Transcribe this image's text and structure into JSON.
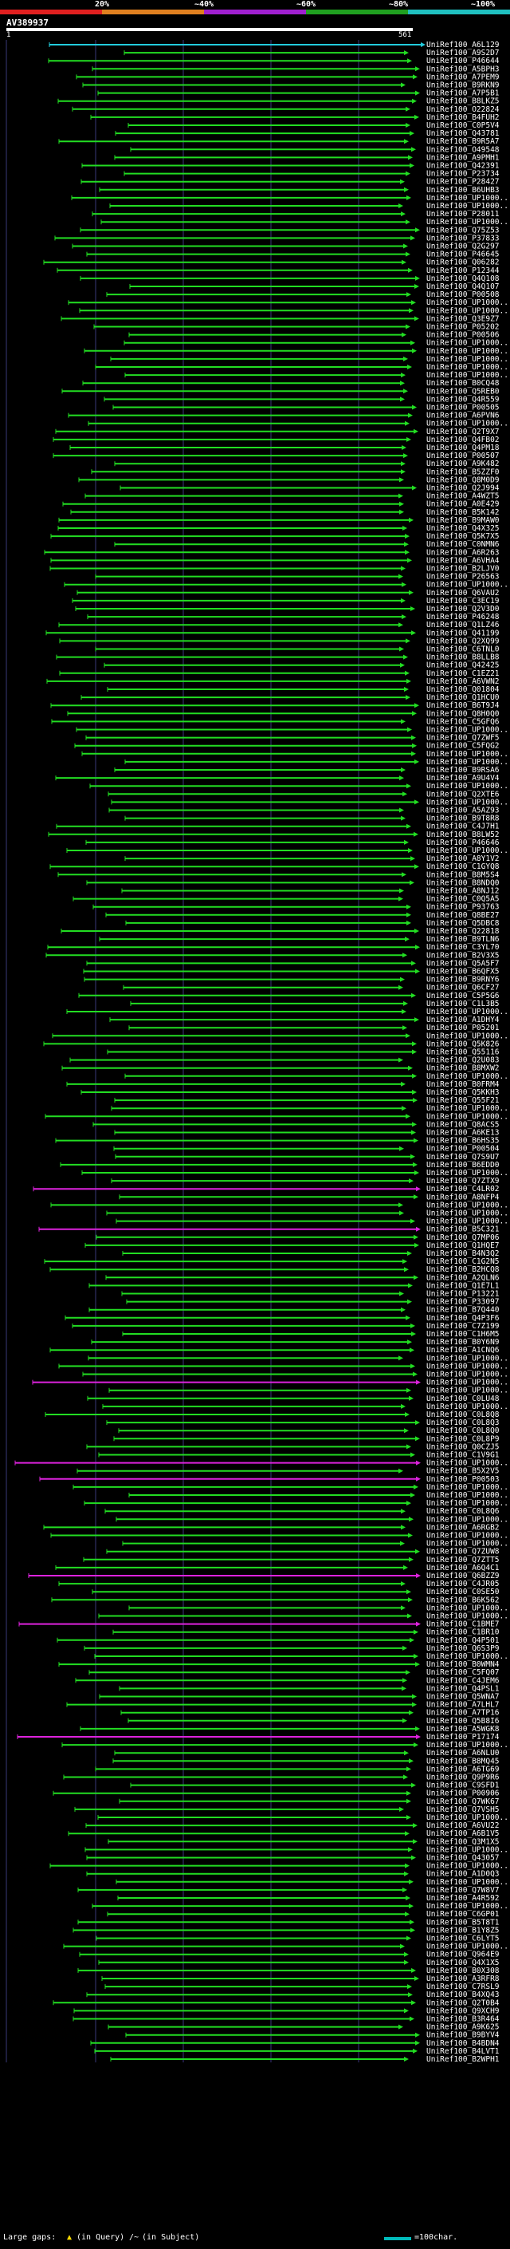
{
  "scale": {
    "labels": [
      "20%",
      "~40%",
      "~60%",
      "~80%",
      "~100%"
    ],
    "colors": [
      "#e02020",
      "#e08020",
      "#a020d0",
      "#20a020",
      "#20c0c0"
    ]
  },
  "query": {
    "name": "AV389937",
    "start": "1",
    "end": "561"
  },
  "colors": {
    "bg": "#000000",
    "best": "#22ccdd",
    "green": "#22dd22",
    "magenta": "#dd22dd",
    "grid": "#3a3a7a"
  },
  "hits": [
    "UniRef100_A6L129",
    "UniRef100_A9S2D7",
    "UniRef100_P46644",
    "UniRef100_A5BPH3",
    "UniRef100_A7PEM9",
    "UniRef100_B9RKN9",
    "UniRef100_A7P5B1",
    "UniRef100_B8LKZ5",
    "UniRef100_O22824",
    "UniRef100_B4FUH2",
    "UniRef100_C0P5V4",
    "UniRef100_Q43781",
    "UniRef100_B9R5A7",
    "UniRef100_O49548",
    "UniRef100_A9PMH1",
    "UniRef100_Q42391",
    "UniRef100_P23734",
    "UniRef100_P28427",
    "UniRef100_B6UHB3",
    "UniRef100_UP1000..",
    "UniRef100_UP1000..",
    "UniRef100_P28011",
    "UniRef100_UP1000..",
    "UniRef100_Q75Z53",
    "UniRef100_P37833",
    "UniRef100_Q2G297",
    "UniRef100_P46645",
    "UniRef100_Q06282",
    "UniRef100_P12344",
    "UniRef100_Q4Q108",
    "UniRef100_Q4Q107",
    "UniRef100_P00508",
    "UniRef100_UP1000..",
    "UniRef100_UP1000..",
    "UniRef100_Q3E9Z7",
    "UniRef100_P05202",
    "UniRef100_P00506",
    "UniRef100_UP1000..",
    "UniRef100_UP1000..",
    "UniRef100_UP1000..",
    "UniRef100_UP1000..",
    "UniRef100_UP1000..",
    "UniRef100_B0CQ48",
    "UniRef100_Q5REB0",
    "UniRef100_Q4R559",
    "UniRef100_P00505",
    "UniRef100_A6PVN6",
    "UniRef100_UP1000..",
    "UniRef100_Q2T9X7",
    "UniRef100_Q4FB02",
    "UniRef100_Q4PM18",
    "UniRef100_P00507",
    "UniRef100_A9K482",
    "UniRef100_B5ZZF0",
    "UniRef100_Q8M0D9",
    "UniRef100_Q2J994",
    "UniRef100_A4WZT5",
    "UniRef100_A0E429",
    "UniRef100_B5K142",
    "UniRef100_B9MAW0",
    "UniRef100_Q4X325",
    "UniRef100_Q5K7X5",
    "UniRef100_C0NMN6",
    "UniRef100_A6R263",
    "UniRef100_A6VHA4",
    "UniRef100_B2LJV0",
    "UniRef100_P26563",
    "UniRef100_UP1000..",
    "UniRef100_Q6VAU2",
    "UniRef100_C3EC19",
    "UniRef100_Q2V3D0",
    "UniRef100_P46248",
    "UniRef100_Q1LZ46",
    "UniRef100_Q41199",
    "UniRef100_Q2XQ99",
    "UniRef100_C6TNL0",
    "UniRef100_B8LLB8",
    "UniRef100_Q42425",
    "UniRef100_C1EZ21",
    "UniRef100_A6VWN2",
    "UniRef100_Q01804",
    "UniRef100_Q1HCU0",
    "UniRef100_B6T9J4",
    "UniRef100_Q8H0Q0",
    "UniRef100_C5GFQ6",
    "UniRef100_UP1000..",
    "UniRef100_Q7ZWF5",
    "UniRef100_C5FQG2",
    "UniRef100_UP1000..",
    "UniRef100_UP1000..",
    "UniRef100_B9RSA6",
    "UniRef100_A9U4V4",
    "UniRef100_UP1000..",
    "UniRef100_Q2XTE6",
    "UniRef100_UP1000..",
    "UniRef100_A5AZ93",
    "UniRef100_B9T8R8",
    "UniRef100_C4J7H1",
    "UniRef100_B8LW52",
    "UniRef100_P46646",
    "UniRef100_UP1000..",
    "UniRef100_A8Y1V2",
    "UniRef100_C1GYQ8",
    "UniRef100_B8M5S4",
    "UniRef100_B8NDQ0",
    "UniRef100_A8NJ12",
    "UniRef100_C0Q5A5",
    "UniRef100_P93763",
    "UniRef100_Q8BE27",
    "UniRef100_Q5DBC8",
    "UniRef100_Q22818",
    "UniRef100_B9TLN6",
    "UniRef100_C3YL70",
    "UniRef100_B2V3X5",
    "UniRef100_Q5A5F7",
    "UniRef100_B6QFX5",
    "UniRef100_B9RNY6",
    "UniRef100_Q6CF27",
    "UniRef100_C5P5G6",
    "UniRef100_C1L3B5",
    "UniRef100_UP1000..",
    "UniRef100_A1DHY4",
    "UniRef100_P05201",
    "UniRef100_UP1000..",
    "UniRef100_Q5K826",
    "UniRef100_Q55116",
    "UniRef100_Q2U083",
    "UniRef100_B8MXW2",
    "UniRef100_UP1000..",
    "UniRef100_B0FRM4",
    "UniRef100_Q5KKH3",
    "UniRef100_Q55F21",
    "UniRef100_UP1000..",
    "UniRef100_UP1000..",
    "UniRef100_Q8ACS5",
    "UniRef100_A6KE13",
    "UniRef100_B6HS35",
    "UniRef100_P00504",
    "UniRef100_Q7S9U7",
    "UniRef100_B6EDD0",
    "UniRef100_UP1000..",
    "UniRef100_Q7ZTX9",
    "UniRef100_C4LR02",
    "UniRef100_A8NFP4",
    "UniRef100_UP1000..",
    "UniRef100_UP1000..",
    "UniRef100_UP1000..",
    "UniRef100_B5C321",
    "UniRef100_Q7MP06",
    "UniRef100_Q1HQE7",
    "UniRef100_B4N3Q2",
    "UniRef100_C1G2N5",
    "UniRef100_B2HCQ8",
    "UniRef100_A2QLN6",
    "UniRef100_Q1E7L1",
    "UniRef100_P13221",
    "UniRef100_P33097",
    "UniRef100_B7Q440",
    "UniRef100_Q4P3F6",
    "UniRef100_C7Z199",
    "UniRef100_C1H6M5",
    "UniRef100_B0Y6N9",
    "UniRef100_A1CNQ6",
    "UniRef100_UP1000..",
    "UniRef100_UP1000..",
    "UniRef100_UP1000..",
    "UniRef100_UP1000..",
    "UniRef100_UP1000..",
    "UniRef100_C0LU48",
    "UniRef100_UP1000..",
    "UniRef100_C0L8Q8",
    "UniRef100_C0L8Q3",
    "UniRef100_C0L8Q0",
    "UniRef100_C0L8P9",
    "UniRef100_Q0CZJ5",
    "UniRef100_C1V9G1",
    "UniRef100_UP1000..",
    "UniRef100_B5X2V5",
    "UniRef100_P00503",
    "UniRef100_UP1000..",
    "UniRef100_UP1000..",
    "UniRef100_UP1000..",
    "UniRef100_C0L8Q6",
    "UniRef100_UP1000..",
    "UniRef100_A6RGB2",
    "UniRef100_UP1000..",
    "UniRef100_UP1000..",
    "UniRef100_Q7ZUW8",
    "UniRef100_Q7ZTT5",
    "UniRef100_A6Q4C1",
    "UniRef100_Q6BZZ9",
    "UniRef100_C4JR05",
    "UniRef100_C0SE50",
    "UniRef100_B6K562",
    "UniRef100_UP1000..",
    "UniRef100_UP1000..",
    "UniRef100_C1BME7",
    "UniRef100_C1BR10",
    "UniRef100_Q4P501",
    "UniRef100_Q6S3P9",
    "UniRef100_UP1000..",
    "UniRef100_B0WMN4",
    "UniRef100_C5FQ07",
    "UniRef100_C4JEM6",
    "UniRef100_Q4PSL1",
    "UniRef100_Q5WNA7",
    "UniRef100_A7LHL7",
    "UniRef100_A7TP16",
    "UniRef100_Q5B8I6",
    "UniRef100_A5WGK8",
    "UniRef100_P17174",
    "UniRef100_UP1000..",
    "UniRef100_A6NLU0",
    "UniRef100_B8MQ45",
    "UniRef100_A6TG69",
    "UniRef100_Q9P9R6",
    "UniRef100_C9SFD1",
    "UniRef100_P00906",
    "UniRef100_Q7WK67",
    "UniRef100_Q7VSH5",
    "UniRef100_UP1000..",
    "UniRef100_A6VU22",
    "UniRef100_A6B1V5",
    "UniRef100_Q3M1X5",
    "UniRef100_UP1000..",
    "UniRef100_Q43057",
    "UniRef100_UP1000..",
    "UniRef100_A1D0Q3",
    "UniRef100_UP1000..",
    "UniRef100_Q7W8V7",
    "UniRef100_A4R592",
    "UniRef100_UP1000..",
    "UniRef100_C6GP01",
    "UniRef100_B5T8T1",
    "UniRef100_B1Y8Z5",
    "UniRef100_C6LYT5",
    "UniRef100_UP1000..",
    "UniRef100_Q964E9",
    "UniRef100_Q4X1X5",
    "UniRef100_B0X308",
    "UniRef100_A3RFR8",
    "UniRef100_C7RSL9",
    "UniRef100_B4XQ43",
    "UniRef100_Q2T0B4",
    "UniRef100_Q9XCH9",
    "UniRef100_B3R464",
    "UniRef100_A9K625",
    "UniRef100_B9BYV4",
    "UniRef100_B4BDN4",
    "UniRef100_B4LVT1",
    "UniRef100_B2WPH1"
  ],
  "legend": {
    "large_gaps": "Large gaps:",
    "in_query": "(in Query)",
    "in_subject": "(in Subject)",
    "scale_text": "=100char."
  }
}
